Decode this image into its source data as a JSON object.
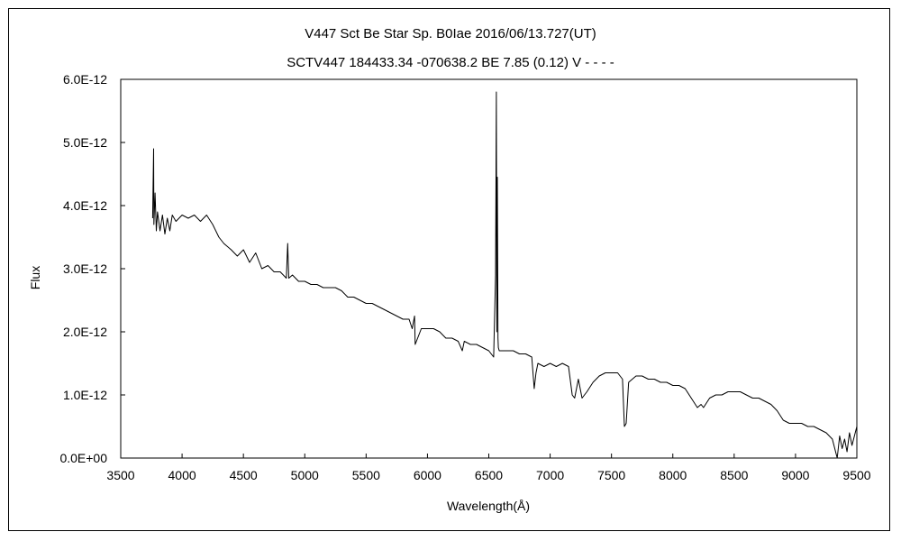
{
  "chart_data": {
    "type": "line",
    "title": "V447 Sct     Be Star    Sp. B0Iae    2016/06/13.727(UT)",
    "subtitle": "SCTV447 184433.34 -070638.2 BE 7.85 (0.12) V - - - -",
    "xlabel": "Wavelength(Å)",
    "ylabel": "Flux",
    "xlim": [
      3500,
      9500
    ],
    "ylim": [
      0,
      6e-12
    ],
    "x_ticks": [
      3500,
      4000,
      4500,
      5000,
      5500,
      6000,
      6500,
      7000,
      7500,
      8000,
      8500,
      9000,
      9500
    ],
    "x_tick_labels": [
      "3500",
      "4000",
      "4500",
      "5000",
      "5500",
      "6000",
      "6500",
      "7000",
      "7500",
      "8000",
      "8500",
      "9000",
      "9500"
    ],
    "y_ticks": [
      0,
      1e-12,
      2e-12,
      3e-12,
      4e-12,
      5e-12,
      6e-12
    ],
    "y_tick_labels": [
      "0.0E+00",
      "1.0E-12",
      "2.0E-12",
      "3.0E-12",
      "4.0E-12",
      "5.0E-12",
      "6.0E-12"
    ],
    "grid": false,
    "legend": "none",
    "line_color": "#000000",
    "series": [
      {
        "x": [
          3760,
          3768,
          3770,
          3780,
          3790,
          3800,
          3820,
          3840,
          3860,
          3880,
          3900,
          3920,
          3950,
          4000,
          4050,
          4100,
          4150,
          4200,
          4250,
          4300,
          4340,
          4400,
          4450,
          4500,
          4550,
          4600,
          4650,
          4700,
          4750,
          4800,
          4850,
          4861,
          4870,
          4900,
          4950,
          5000,
          5050,
          5100,
          5150,
          5200,
          5250,
          5300,
          5350,
          5400,
          5450,
          5500,
          5550,
          5600,
          5650,
          5700,
          5750,
          5800,
          5850,
          5876,
          5895,
          5900,
          5950,
          6000,
          6050,
          6100,
          6150,
          6200,
          6250,
          6284,
          6300,
          6350,
          6400,
          6450,
          6500,
          6540,
          6555,
          6562,
          6565,
          6570,
          6575,
          6578,
          6585,
          6600,
          6650,
          6700,
          6750,
          6800,
          6850,
          6870,
          6885,
          6900,
          6950,
          7000,
          7050,
          7100,
          7150,
          7180,
          7200,
          7230,
          7260,
          7300,
          7350,
          7400,
          7450,
          7500,
          7550,
          7590,
          7605,
          7620,
          7640,
          7700,
          7750,
          7800,
          7850,
          7900,
          7950,
          8000,
          8050,
          8100,
          8150,
          8200,
          8230,
          8250,
          8300,
          8350,
          8400,
          8450,
          8500,
          8550,
          8600,
          8650,
          8700,
          8750,
          8800,
          8850,
          8900,
          8950,
          9000,
          9050,
          9100,
          9150,
          9200,
          9250,
          9300,
          9340,
          9360,
          9380,
          9400,
          9420,
          9440,
          9460,
          9480,
          9500
        ],
        "y": [
          3.8e-12,
          4.9e-12,
          3.7e-12,
          4.2e-12,
          3.6e-12,
          3.9e-12,
          3.6e-12,
          3.85e-12,
          3.55e-12,
          3.8e-12,
          3.6e-12,
          3.85e-12,
          3.75e-12,
          3.85e-12,
          3.8e-12,
          3.85e-12,
          3.75e-12,
          3.85e-12,
          3.7e-12,
          3.5e-12,
          3.4e-12,
          3.3e-12,
          3.2e-12,
          3.3e-12,
          3.1e-12,
          3.25e-12,
          3e-12,
          3.05e-12,
          2.95e-12,
          2.95e-12,
          2.85e-12,
          3.4e-12,
          2.85e-12,
          2.9e-12,
          2.8e-12,
          2.8e-12,
          2.75e-12,
          2.75e-12,
          2.7e-12,
          2.7e-12,
          2.7e-12,
          2.65e-12,
          2.55e-12,
          2.55e-12,
          2.5e-12,
          2.45e-12,
          2.45e-12,
          2.4e-12,
          2.35e-12,
          2.3e-12,
          2.25e-12,
          2.2e-12,
          2.2e-12,
          2.05e-12,
          2.25e-12,
          1.8e-12,
          2.05e-12,
          2.05e-12,
          2.05e-12,
          2e-12,
          1.9e-12,
          1.9e-12,
          1.85e-12,
          1.7e-12,
          1.85e-12,
          1.8e-12,
          1.8e-12,
          1.75e-12,
          1.7e-12,
          1.6e-12,
          2.9e-12,
          5.8e-12,
          2e-12,
          4.45e-12,
          1.9e-12,
          1.75e-12,
          1.7e-12,
          1.7e-12,
          1.7e-12,
          1.7e-12,
          1.65e-12,
          1.65e-12,
          1.6e-12,
          1.1e-12,
          1.35e-12,
          1.5e-12,
          1.45e-12,
          1.5e-12,
          1.45e-12,
          1.5e-12,
          1.45e-12,
          1e-12,
          9.5e-13,
          1.25e-12,
          9.5e-13,
          1.05e-12,
          1.2e-12,
          1.3e-12,
          1.35e-12,
          1.35e-12,
          1.35e-12,
          1.25e-12,
          5e-13,
          5.5e-13,
          1.2e-12,
          1.3e-12,
          1.3e-12,
          1.25e-12,
          1.25e-12,
          1.2e-12,
          1.2e-12,
          1.15e-12,
          1.15e-12,
          1.1e-12,
          9.5e-13,
          8e-13,
          8.5e-13,
          8e-13,
          9.5e-13,
          1e-12,
          1e-12,
          1.05e-12,
          1.05e-12,
          1.05e-12,
          1e-12,
          9.5e-13,
          9.5e-13,
          9e-13,
          8.5e-13,
          7.5e-13,
          6e-13,
          5.5e-13,
          5.5e-13,
          5.5e-13,
          5e-13,
          5e-13,
          4.5e-13,
          4e-13,
          3e-13,
          0.0,
          3.5e-13,
          1.5e-13,
          3e-13,
          1e-13,
          4e-13,
          2e-13,
          3.5e-13,
          5e-13
        ]
      }
    ]
  }
}
